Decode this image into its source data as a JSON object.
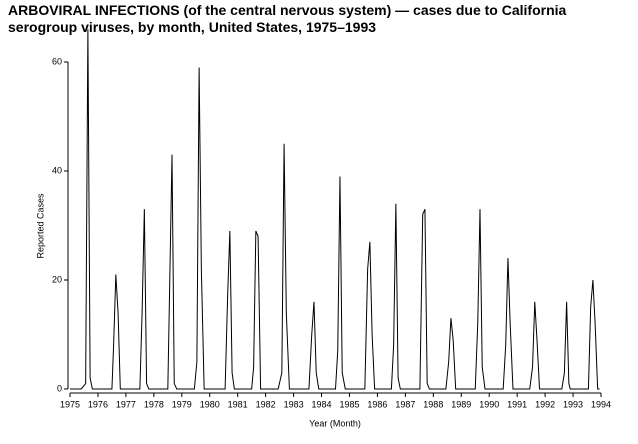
{
  "chart_data": {
    "type": "line",
    "title": "ARBOVIRAL INFECTIONS (of the central nervous system) — cases due to California serogroup viruses, by month, United States, 1975–1993",
    "x_label": "Year (Month)",
    "y_label": "Reported Cases",
    "xlim": [
      1975,
      1994
    ],
    "xticks": [
      1975,
      1976,
      1977,
      1978,
      1979,
      1980,
      1981,
      1982,
      1983,
      1984,
      1985,
      1986,
      1987,
      1988,
      1989,
      1990,
      1991,
      1992,
      1993,
      1994
    ],
    "ylim": [
      0,
      60
    ],
    "yticks": [
      0,
      20,
      40,
      60
    ],
    "grid": false,
    "series": [
      {
        "name": "Reported Cases",
        "color": "#000000",
        "x": [
          1975,
          1975.4,
          1975.56,
          1975.64,
          1975.72,
          1975.8,
          1976.5,
          1976.56,
          1976.64,
          1976.72,
          1976.8,
          1977.5,
          1977.58,
          1977.66,
          1977.74,
          1977.82,
          1978.5,
          1978.57,
          1978.65,
          1978.73,
          1978.82,
          1979.45,
          1979.54,
          1979.62,
          1979.7,
          1979.8,
          1980.55,
          1980.64,
          1980.72,
          1980.8,
          1980.88,
          1981.5,
          1981.57,
          1981.65,
          1981.73,
          1981.82,
          1982.45,
          1982.58,
          1982.66,
          1982.74,
          1982.85,
          1983.55,
          1983.65,
          1983.73,
          1983.81,
          1983.9,
          1984.5,
          1984.58,
          1984.66,
          1984.74,
          1984.85,
          1985.55,
          1985.65,
          1985.73,
          1985.81,
          1985.9,
          1986.5,
          1986.58,
          1986.66,
          1986.74,
          1986.82,
          1987.52,
          1987.62,
          1987.7,
          1987.78,
          1987.86,
          1988.45,
          1988.55,
          1988.63,
          1988.71,
          1988.8,
          1989.5,
          1989.59,
          1989.67,
          1989.75,
          1989.85,
          1990.5,
          1990.59,
          1990.67,
          1990.75,
          1990.85,
          1991.45,
          1991.55,
          1991.63,
          1991.71,
          1991.8,
          1992.6,
          1992.69,
          1992.77,
          1992.85,
          1992.9,
          1993.55,
          1993.63,
          1993.71,
          1993.79,
          1993.88,
          1993.95
        ],
        "values": [
          0,
          0,
          1,
          66,
          2,
          0,
          0,
          8,
          21,
          14,
          0,
          0,
          14,
          33,
          1,
          0,
          0,
          20,
          43,
          1,
          0,
          0,
          5,
          59,
          22,
          0,
          0,
          17,
          29,
          3,
          0,
          0,
          4,
          29,
          28,
          0,
          0,
          3,
          45,
          14,
          0,
          0,
          10,
          16,
          3,
          0,
          0,
          7,
          39,
          3,
          0,
          0,
          22,
          27,
          10,
          0,
          0,
          8,
          34,
          2,
          0,
          0,
          32,
          33,
          1,
          0,
          0,
          5,
          13,
          9,
          0,
          0,
          12,
          33,
          4,
          0,
          0,
          8,
          24,
          12,
          0,
          0,
          4,
          16,
          9,
          0,
          0,
          3,
          16,
          1,
          0,
          0,
          15,
          20,
          12,
          0,
          0
        ]
      }
    ]
  }
}
